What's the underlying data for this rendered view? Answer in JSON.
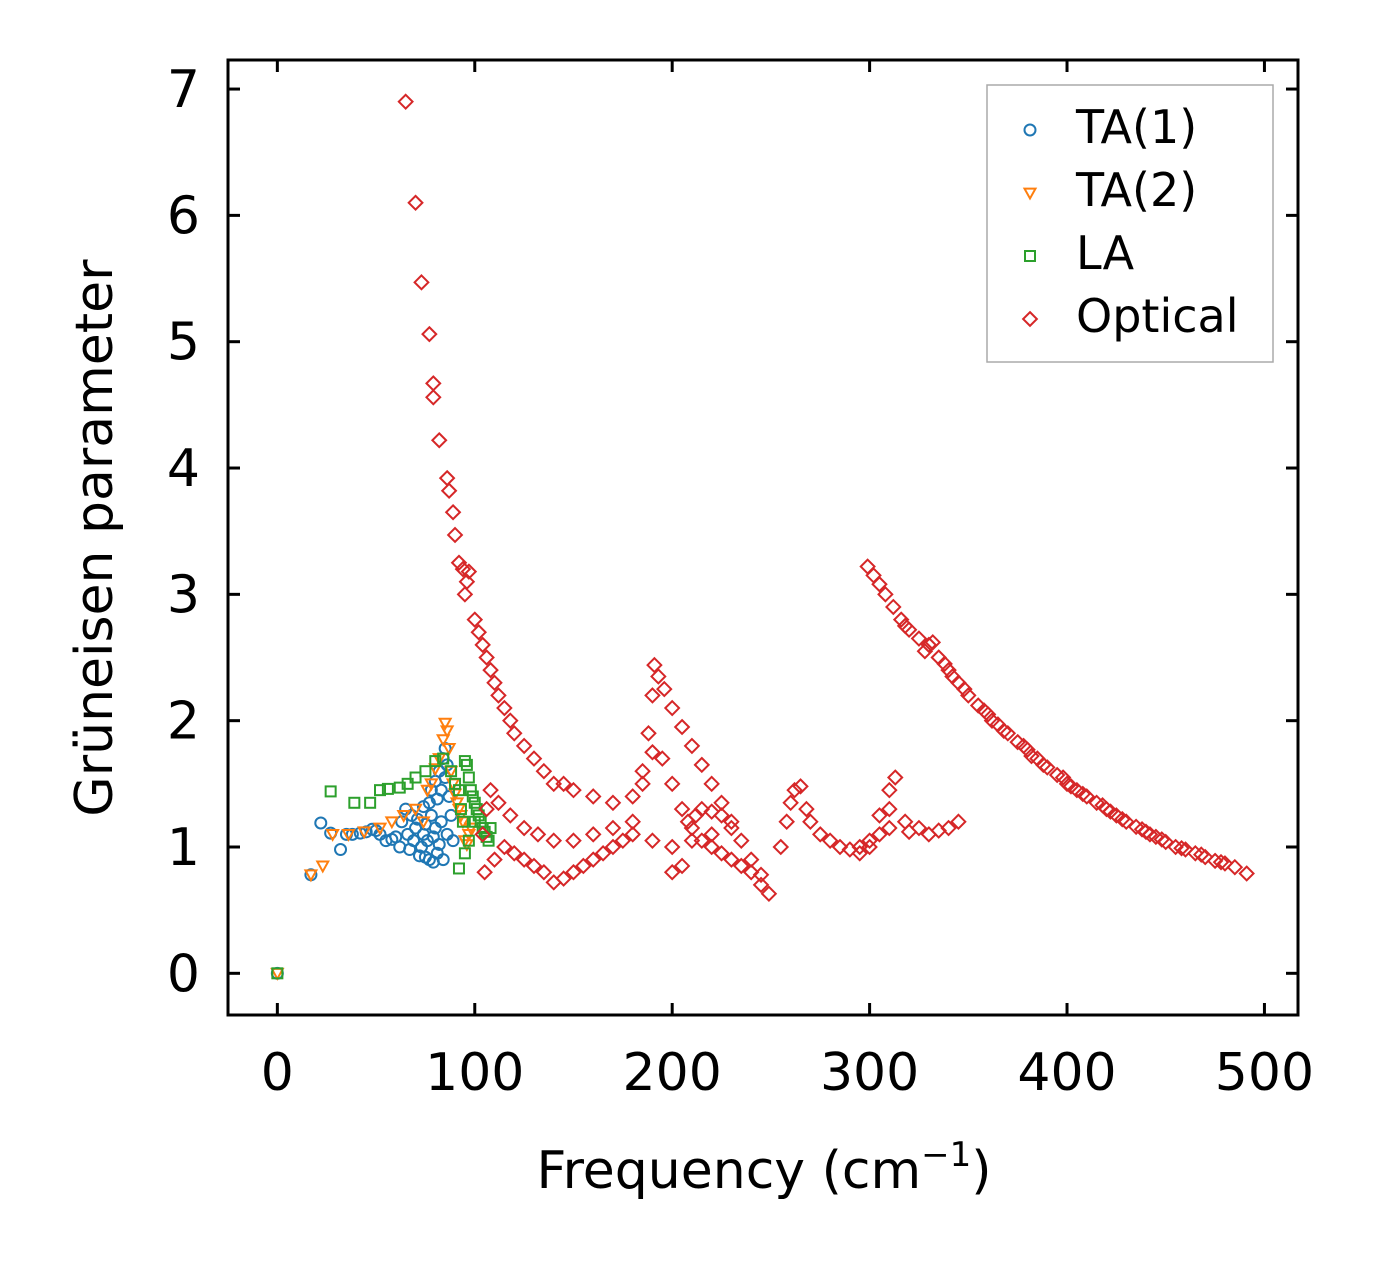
{
  "chart_data": {
    "type": "scatter",
    "title": "",
    "xlabel": "Frequency (cm",
    "xlabel_sup": "−1",
    "xlabel_close": ")",
    "ylabel": "Grüneisen parameter",
    "xlim": [
      -25,
      517
    ],
    "ylim": [
      -0.33,
      7.23
    ],
    "xticks": [
      0,
      100,
      200,
      300,
      400,
      500
    ],
    "yticks": [
      0,
      1,
      2,
      3,
      4,
      5,
      6,
      7
    ],
    "legend_position": "top-right",
    "series": [
      {
        "name": "TA(1)",
        "marker": "circle",
        "color": "#1f77b4",
        "points": [
          [
            0,
            0
          ],
          [
            17,
            0.78
          ],
          [
            22,
            1.19
          ],
          [
            27,
            1.11
          ],
          [
            32,
            0.98
          ],
          [
            35,
            1.1
          ],
          [
            38,
            1.1
          ],
          [
            42,
            1.11
          ],
          [
            45,
            1.12
          ],
          [
            48,
            1.14
          ],
          [
            50,
            1.13
          ],
          [
            52,
            1.1
          ],
          [
            55,
            1.05
          ],
          [
            58,
            1.06
          ],
          [
            60,
            1.08
          ],
          [
            62,
            1.0
          ],
          [
            63,
            1.2
          ],
          [
            65,
            1.3
          ],
          [
            66,
            1.1
          ],
          [
            67,
            0.98
          ],
          [
            68,
            1.25
          ],
          [
            69,
            1.05
          ],
          [
            70,
            1.15
          ],
          [
            71,
            1.22
          ],
          [
            72,
            0.93
          ],
          [
            73,
            1.0
          ],
          [
            74,
            1.1
          ],
          [
            74,
            1.32
          ],
          [
            75,
            1.18
          ],
          [
            75,
            0.92
          ],
          [
            76,
            1.05
          ],
          [
            77,
            1.35
          ],
          [
            77,
            0.9
          ],
          [
            78,
            1.25
          ],
          [
            78,
            1.45
          ],
          [
            79,
            1.08
          ],
          [
            79,
            0.88
          ],
          [
            80,
            1.52
          ],
          [
            80,
            1.15
          ],
          [
            81,
            0.95
          ],
          [
            81,
            1.38
          ],
          [
            82,
            1.6
          ],
          [
            82,
            1.02
          ],
          [
            83,
            1.45
          ],
          [
            83,
            1.2
          ],
          [
            84,
            1.7
          ],
          [
            84,
            0.9
          ],
          [
            85,
            1.78
          ],
          [
            85,
            1.55
          ],
          [
            86,
            1.65
          ],
          [
            86,
            1.1
          ],
          [
            87,
            1.4
          ],
          [
            88,
            1.25
          ],
          [
            89,
            1.05
          ]
        ]
      },
      {
        "name": "TA(2)",
        "marker": "triangle-down",
        "color": "#ff7f0e",
        "points": [
          [
            0,
            0
          ],
          [
            17,
            0.78
          ],
          [
            23,
            0.85
          ],
          [
            28,
            1.1
          ],
          [
            36,
            1.1
          ],
          [
            44,
            1.12
          ],
          [
            52,
            1.15
          ],
          [
            58,
            1.2
          ],
          [
            64,
            1.25
          ],
          [
            70,
            1.3
          ],
          [
            74,
            1.2
          ],
          [
            76,
            1.45
          ],
          [
            78,
            1.5
          ],
          [
            80,
            1.62
          ],
          [
            82,
            1.7
          ],
          [
            84,
            1.85
          ],
          [
            85,
            1.98
          ],
          [
            86,
            1.92
          ],
          [
            87,
            1.78
          ],
          [
            88,
            1.6
          ],
          [
            89,
            1.5
          ],
          [
            90,
            1.42
          ],
          [
            91,
            1.35
          ],
          [
            92,
            1.3
          ],
          [
            93,
            1.25
          ],
          [
            94,
            1.2
          ],
          [
            95,
            1.05
          ],
          [
            96,
            1.02
          ],
          [
            97,
            1.1
          ],
          [
            98,
            1.15
          ]
        ]
      },
      {
        "name": "LA",
        "marker": "square",
        "color": "#2ca02c",
        "points": [
          [
            0,
            0
          ],
          [
            27,
            1.44
          ],
          [
            39,
            1.35
          ],
          [
            47,
            1.35
          ],
          [
            52,
            1.45
          ],
          [
            56,
            1.46
          ],
          [
            62,
            1.47
          ],
          [
            66,
            1.5
          ],
          [
            70,
            1.55
          ],
          [
            75,
            1.6
          ],
          [
            80,
            1.68
          ],
          [
            84,
            1.7
          ],
          [
            88,
            1.6
          ],
          [
            90,
            1.5
          ],
          [
            92,
            1.45
          ],
          [
            93,
            1.3
          ],
          [
            94,
            1.2
          ],
          [
            95,
            1.68
          ],
          [
            96,
            1.65
          ],
          [
            97,
            1.55
          ],
          [
            98,
            1.45
          ],
          [
            99,
            1.4
          ],
          [
            100,
            1.35
          ],
          [
            101,
            1.3
          ],
          [
            102,
            1.25
          ],
          [
            103,
            1.2
          ],
          [
            104,
            1.15
          ],
          [
            105,
            1.12
          ],
          [
            106,
            1.08
          ],
          [
            107,
            1.05
          ],
          [
            95,
            0.95
          ],
          [
            92,
            0.83
          ],
          [
            97,
            1.05
          ],
          [
            100,
            1.2
          ],
          [
            108,
            1.15
          ]
        ]
      },
      {
        "name": "Optical",
        "marker": "diamond",
        "color": "#d62728",
        "points": [
          [
            65,
            6.9
          ],
          [
            70,
            6.1
          ],
          [
            73,
            5.47
          ],
          [
            77,
            5.06
          ],
          [
            79,
            4.67
          ],
          [
            79,
            4.56
          ],
          [
            82,
            4.22
          ],
          [
            86,
            3.92
          ],
          [
            87,
            3.82
          ],
          [
            89,
            3.65
          ],
          [
            90,
            3.47
          ],
          [
            92,
            3.25
          ],
          [
            94,
            3.2
          ],
          [
            96,
            3.1
          ],
          [
            97,
            3.18
          ],
          [
            95,
            3.0
          ],
          [
            100,
            2.8
          ],
          [
            102,
            2.7
          ],
          [
            104,
            2.6
          ],
          [
            106,
            2.5
          ],
          [
            108,
            2.4
          ],
          [
            110,
            2.3
          ],
          [
            112,
            2.2
          ],
          [
            115,
            2.1
          ],
          [
            118,
            2.0
          ],
          [
            120,
            1.9
          ],
          [
            125,
            1.8
          ],
          [
            130,
            1.7
          ],
          [
            135,
            1.6
          ],
          [
            140,
            1.5
          ],
          [
            145,
            1.5
          ],
          [
            150,
            1.45
          ],
          [
            160,
            1.4
          ],
          [
            170,
            1.35
          ],
          [
            180,
            1.4
          ],
          [
            185,
            1.6
          ],
          [
            188,
            1.9
          ],
          [
            190,
            2.2
          ],
          [
            191,
            2.44
          ],
          [
            193,
            2.35
          ],
          [
            196,
            2.25
          ],
          [
            200,
            2.1
          ],
          [
            205,
            1.95
          ],
          [
            210,
            1.8
          ],
          [
            215,
            1.65
          ],
          [
            220,
            1.5
          ],
          [
            225,
            1.35
          ],
          [
            230,
            1.2
          ],
          [
            235,
            1.05
          ],
          [
            240,
            0.9
          ],
          [
            245,
            0.78
          ],
          [
            249,
            0.63
          ],
          [
            245,
            0.7
          ],
          [
            240,
            0.8
          ],
          [
            235,
            0.85
          ],
          [
            230,
            0.9
          ],
          [
            225,
            0.95
          ],
          [
            220,
            1.0
          ],
          [
            215,
            1.05
          ],
          [
            210,
            1.15
          ],
          [
            205,
            1.3
          ],
          [
            200,
            1.5
          ],
          [
            195,
            1.7
          ],
          [
            190,
            1.75
          ],
          [
            185,
            1.5
          ],
          [
            180,
            1.2
          ],
          [
            175,
            1.05
          ],
          [
            170,
            1.0
          ],
          [
            165,
            0.95
          ],
          [
            160,
            0.9
          ],
          [
            155,
            0.85
          ],
          [
            150,
            0.8
          ],
          [
            145,
            0.75
          ],
          [
            140,
            0.72
          ],
          [
            135,
            0.8
          ],
          [
            130,
            0.85
          ],
          [
            125,
            0.9
          ],
          [
            120,
            0.95
          ],
          [
            115,
            1.0
          ],
          [
            110,
            0.9
          ],
          [
            105,
            0.8
          ],
          [
            104,
            1.1
          ],
          [
            106,
            1.3
          ],
          [
            108,
            1.45
          ],
          [
            112,
            1.35
          ],
          [
            118,
            1.25
          ],
          [
            125,
            1.15
          ],
          [
            132,
            1.1
          ],
          [
            140,
            1.05
          ],
          [
            150,
            1.05
          ],
          [
            160,
            1.1
          ],
          [
            170,
            1.15
          ],
          [
            180,
            1.1
          ],
          [
            190,
            1.05
          ],
          [
            200,
            1.0
          ],
          [
            210,
            1.05
          ],
          [
            220,
            1.1
          ],
          [
            230,
            1.15
          ],
          [
            200,
            0.8
          ],
          [
            205,
            0.85
          ],
          [
            215,
            1.3
          ],
          [
            220,
            1.28
          ],
          [
            225,
            1.25
          ],
          [
            212,
            1.25
          ],
          [
            208,
            1.2
          ],
          [
            255,
            1.0
          ],
          [
            258,
            1.2
          ],
          [
            260,
            1.35
          ],
          [
            262,
            1.45
          ],
          [
            265,
            1.48
          ],
          [
            268,
            1.3
          ],
          [
            270,
            1.2
          ],
          [
            275,
            1.1
          ],
          [
            280,
            1.05
          ],
          [
            285,
            1.0
          ],
          [
            290,
            0.98
          ],
          [
            295,
            1.0
          ],
          [
            300,
            1.05
          ],
          [
            305,
            1.25
          ],
          [
            310,
            1.45
          ],
          [
            313,
            1.55
          ],
          [
            310,
            1.3
          ],
          [
            305,
            1.1
          ],
          [
            300,
            1.0
          ],
          [
            295,
            0.95
          ],
          [
            310,
            1.15
          ],
          [
            320,
            1.12
          ],
          [
            330,
            1.1
          ],
          [
            340,
            1.15
          ],
          [
            345,
            1.2
          ],
          [
            318,
            1.2
          ],
          [
            325,
            1.15
          ],
          [
            335,
            1.13
          ],
          [
            299,
            3.22
          ],
          [
            302,
            3.15
          ],
          [
            305,
            3.08
          ],
          [
            308,
            3.0
          ],
          [
            312,
            2.9
          ],
          [
            316,
            2.8
          ],
          [
            320,
            2.72
          ],
          [
            325,
            2.65
          ],
          [
            330,
            2.6
          ],
          [
            335,
            2.5
          ],
          [
            340,
            2.4
          ],
          [
            345,
            2.3
          ],
          [
            350,
            2.2
          ],
          [
            355,
            2.12
          ],
          [
            360,
            2.05
          ],
          [
            365,
            1.97
          ],
          [
            370,
            1.9
          ],
          [
            375,
            1.83
          ],
          [
            380,
            1.77
          ],
          [
            385,
            1.7
          ],
          [
            390,
            1.63
          ],
          [
            395,
            1.57
          ],
          [
            400,
            1.5
          ],
          [
            405,
            1.45
          ],
          [
            410,
            1.4
          ],
          [
            415,
            1.35
          ],
          [
            420,
            1.3
          ],
          [
            425,
            1.25
          ],
          [
            430,
            1.2
          ],
          [
            435,
            1.16
          ],
          [
            440,
            1.12
          ],
          [
            445,
            1.08
          ],
          [
            450,
            1.04
          ],
          [
            455,
            1.0
          ],
          [
            460,
            0.98
          ],
          [
            465,
            0.95
          ],
          [
            470,
            0.92
          ],
          [
            475,
            0.89
          ],
          [
            480,
            0.87
          ],
          [
            485,
            0.84
          ],
          [
            491,
            0.79
          ],
          [
            318,
            2.75
          ],
          [
            328,
            2.55
          ],
          [
            338,
            2.45
          ],
          [
            348,
            2.25
          ],
          [
            358,
            2.08
          ],
          [
            368,
            1.92
          ],
          [
            378,
            1.8
          ],
          [
            388,
            1.65
          ],
          [
            398,
            1.55
          ],
          [
            408,
            1.42
          ],
          [
            418,
            1.33
          ],
          [
            428,
            1.22
          ],
          [
            438,
            1.14
          ],
          [
            448,
            1.06
          ],
          [
            458,
            0.99
          ],
          [
            468,
            0.94
          ],
          [
            478,
            0.88
          ],
          [
            332,
            2.62
          ],
          [
            342,
            2.35
          ],
          [
            362,
            2.0
          ],
          [
            382,
            1.72
          ],
          [
            402,
            1.48
          ],
          [
            422,
            1.28
          ],
          [
            442,
            1.1
          ]
        ]
      }
    ]
  },
  "legend": {
    "entries": [
      {
        "label": "TA(1)",
        "marker": "circle",
        "color": "#1f77b4"
      },
      {
        "label": "TA(2)",
        "marker": "triangle-down",
        "color": "#ff7f0e"
      },
      {
        "label": "LA",
        "marker": "square",
        "color": "#2ca02c"
      },
      {
        "label": "Optical",
        "marker": "diamond",
        "color": "#d62728"
      }
    ]
  }
}
